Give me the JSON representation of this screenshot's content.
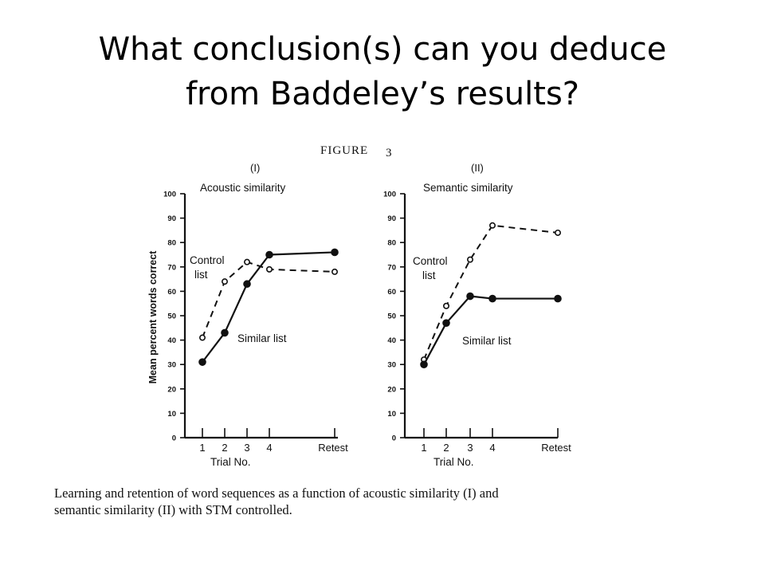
{
  "slide": {
    "title_line1": "What conclusion(s) can you deduce",
    "title_line2": "from Baddeley’s results?"
  },
  "figure": {
    "label": "FIGURE",
    "label_number": "3",
    "caption_line1": "Learning and retention of word sequences as a function of acoustic similarity (I) and",
    "caption_line2": "semantic similarity (II) with STM controlled."
  },
  "chart_data": [
    {
      "type": "line",
      "panel": "(I)",
      "title": "Acoustic similarity",
      "ylabel": "Mean percent words correct",
      "xlabel": "Trial No.",
      "categories": [
        "1",
        "2",
        "3",
        "4",
        "Retest"
      ],
      "y_ticks": [
        0,
        10,
        20,
        30,
        40,
        50,
        60,
        70,
        80,
        90,
        100
      ],
      "ylim": [
        0,
        100
      ],
      "grid": false,
      "series": [
        {
          "name": "Control list",
          "style": "dashed-open",
          "values": [
            41,
            64,
            72,
            69,
            68
          ]
        },
        {
          "name": "Similar list",
          "style": "solid-filled",
          "values": [
            31,
            43,
            63,
            75,
            76
          ]
        }
      ]
    },
    {
      "type": "line",
      "panel": "(II)",
      "title": "Semantic similarity",
      "ylabel": "",
      "xlabel": "Trial No.",
      "categories": [
        "1",
        "2",
        "3",
        "4",
        "Retest"
      ],
      "y_ticks": [
        0,
        10,
        20,
        30,
        40,
        50,
        60,
        70,
        80,
        90,
        100
      ],
      "ylim": [
        0,
        100
      ],
      "grid": false,
      "series": [
        {
          "name": "Control list",
          "style": "dashed-open",
          "values": [
            32,
            54,
            73,
            87,
            84
          ]
        },
        {
          "name": "Similar list",
          "style": "solid-filled",
          "values": [
            30,
            47,
            58,
            57,
            57
          ]
        }
      ]
    }
  ]
}
